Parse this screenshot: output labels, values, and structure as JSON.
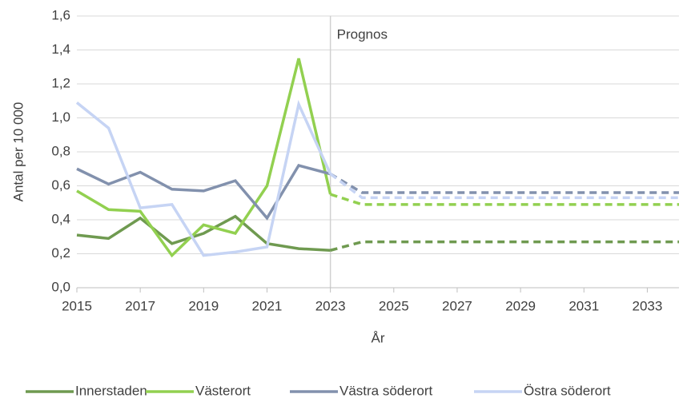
{
  "chart_data": {
    "type": "line",
    "x_label": "År",
    "y_label": "Antal per 10 000",
    "annotation": {
      "text": "Prognos",
      "x": 2023
    },
    "x": [
      2015,
      2016,
      2017,
      2018,
      2019,
      2020,
      2021,
      2022,
      2023,
      2024,
      2025,
      2026,
      2027,
      2028,
      2029,
      2030,
      2031,
      2032,
      2033,
      2034
    ],
    "series": [
      {
        "name": "Innerstaden",
        "color": "#6f9a50",
        "values": [
          0.31,
          0.29,
          0.41,
          0.26,
          0.32,
          0.42,
          0.26,
          0.23,
          0.22,
          0.27,
          0.27,
          0.27,
          0.27,
          0.27,
          0.27,
          0.27,
          0.27,
          0.27,
          0.27,
          0.27
        ]
      },
      {
        "name": "Västerort",
        "color": "#92d050",
        "values": [
          0.57,
          0.46,
          0.45,
          0.19,
          0.37,
          0.32,
          0.6,
          1.35,
          0.55,
          0.49,
          0.49,
          0.49,
          0.49,
          0.49,
          0.49,
          0.49,
          0.49,
          0.49,
          0.49,
          0.49
        ]
      },
      {
        "name": "Västra söderort",
        "color": "#8291ad",
        "values": [
          0.7,
          0.61,
          0.68,
          0.58,
          0.57,
          0.63,
          0.41,
          0.72,
          0.67,
          0.56,
          0.56,
          0.56,
          0.56,
          0.56,
          0.56,
          0.56,
          0.56,
          0.56,
          0.56,
          0.56
        ]
      },
      {
        "name": "Östra söderort",
        "color": "#c6d4f4",
        "values": [
          1.09,
          0.94,
          0.47,
          0.49,
          0.19,
          0.21,
          0.24,
          1.08,
          0.67,
          0.53,
          0.53,
          0.53,
          0.53,
          0.53,
          0.53,
          0.53,
          0.53,
          0.53,
          0.53,
          0.53
        ]
      }
    ],
    "xlim": [
      2015,
      2034
    ],
    "xticks": [
      2015,
      2017,
      2019,
      2021,
      2023,
      2025,
      2027,
      2029,
      2031,
      2033
    ],
    "ylim": [
      0,
      1.6
    ],
    "yticks": [
      {
        "value": 0,
        "label": "0,0"
      },
      {
        "value": 0.2,
        "label": "0,2"
      },
      {
        "value": 0.4,
        "label": "0,4"
      },
      {
        "value": 0.6,
        "label": "0,6"
      },
      {
        "value": 0.8,
        "label": "0,8"
      },
      {
        "value": 1.0,
        "label": "1,0"
      },
      {
        "value": 1.2,
        "label": "1,2"
      },
      {
        "value": 1.4,
        "label": "1,4"
      },
      {
        "value": 1.6,
        "label": "1,6"
      }
    ],
    "grid": true,
    "legend": "bottom"
  }
}
